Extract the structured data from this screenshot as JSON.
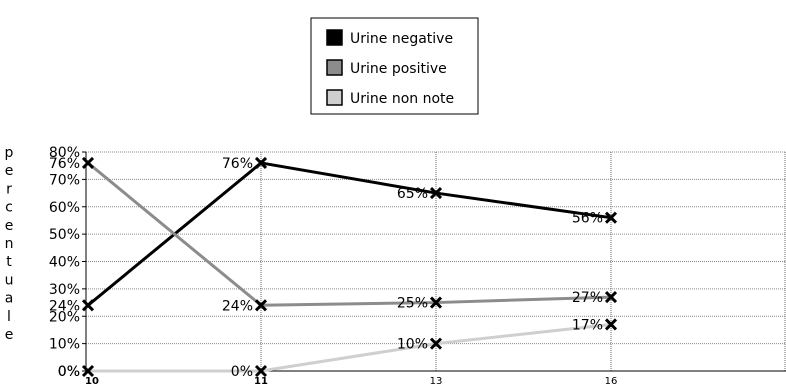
{
  "chart_data": {
    "type": "line",
    "ylabel": "percentuale",
    "ylim": [
      0,
      80
    ],
    "yticks": [
      "0%",
      "10%",
      "20%",
      "30%",
      "40%",
      "50%",
      "60%",
      "70%",
      "80%"
    ],
    "categories": [
      "10",
      "11",
      "13",
      "16"
    ],
    "legend_position": "top-center",
    "grid": true,
    "series": [
      {
        "name": "Urine negative",
        "color": "#000000",
        "values": [
          24,
          76,
          65,
          56
        ],
        "labels": [
          "24%",
          "76%",
          "65%",
          "56%"
        ]
      },
      {
        "name": "Urine positive",
        "color": "#8c8c8c",
        "values": [
          76,
          24,
          25,
          27
        ],
        "labels": [
          "76%",
          "24%",
          "25%",
          "27%"
        ]
      },
      {
        "name": "Urine non note",
        "color": "#cfcfcf",
        "values": [
          0,
          0,
          10,
          17
        ],
        "labels": [
          "0%",
          "0%",
          "10%",
          "17%"
        ]
      }
    ]
  }
}
